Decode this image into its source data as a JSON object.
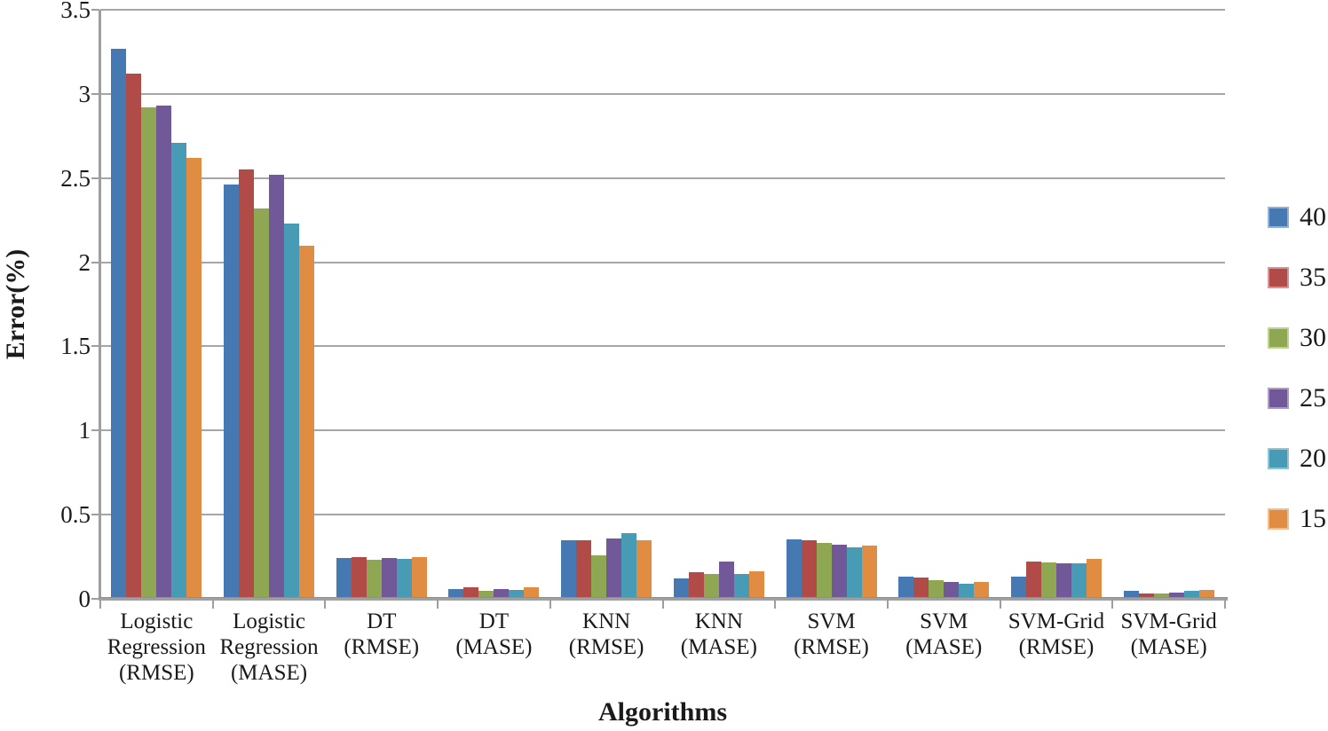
{
  "chart_data": {
    "type": "bar",
    "title": "",
    "xlabel": "Algorithms",
    "ylabel": "Error(%)",
    "ylim": [
      0,
      3.5
    ],
    "ytick_step": 0.5,
    "grid": true,
    "legend_position": "right",
    "categories": [
      "Logistic Regression (RMSE)",
      "Logistic Regression (MASE)",
      "DT (RMSE)",
      "DT (MASE)",
      "KNN (RMSE)",
      "KNN (MASE)",
      "SVM (RMSE)",
      "SVM (MASE)",
      "SVM-Grid (RMSE)",
      "SVM-Grid (MASE)"
    ],
    "category_label_lines": [
      [
        "Logistic",
        "Regression",
        "(RMSE)"
      ],
      [
        "Logistic",
        "Regression",
        "(MASE)"
      ],
      [
        "DT",
        "(RMSE)"
      ],
      [
        "DT",
        "(MASE)"
      ],
      [
        "KNN",
        "(RMSE)"
      ],
      [
        "KNN",
        "(MASE)"
      ],
      [
        "SVM",
        "(RMSE)"
      ],
      [
        "SVM",
        "(MASE)"
      ],
      [
        "SVM-Grid",
        "(RMSE)"
      ],
      [
        "SVM-Grid",
        "(MASE)"
      ]
    ],
    "series": [
      {
        "name": "40",
        "color": "#4679B2",
        "swatch_border": "#92B1D5",
        "values": [
          3.27,
          2.46,
          0.24,
          0.06,
          0.35,
          0.12,
          0.355,
          0.13,
          0.13,
          0.045
        ]
      },
      {
        "name": "35",
        "color": "#B04B48",
        "swatch_border": "#D49694",
        "values": [
          3.12,
          2.55,
          0.25,
          0.07,
          0.35,
          0.16,
          0.35,
          0.125,
          0.22,
          0.03
        ]
      },
      {
        "name": "30",
        "color": "#8FA653",
        "swatch_border": "#BFD38F",
        "values": [
          2.92,
          2.32,
          0.23,
          0.05,
          0.26,
          0.15,
          0.33,
          0.11,
          0.215,
          0.03
        ]
      },
      {
        "name": "25",
        "color": "#715898",
        "swatch_border": "#AE9CC6",
        "values": [
          2.93,
          2.52,
          0.24,
          0.06,
          0.36,
          0.22,
          0.32,
          0.1,
          0.21,
          0.035
        ]
      },
      {
        "name": "20",
        "color": "#479BB4",
        "swatch_border": "#92C3D5",
        "values": [
          2.71,
          2.23,
          0.235,
          0.055,
          0.39,
          0.145,
          0.305,
          0.09,
          0.21,
          0.05
        ]
      },
      {
        "name": "15",
        "color": "#E18C43",
        "swatch_border": "#F0BE92",
        "values": [
          2.62,
          2.1,
          0.25,
          0.07,
          0.35,
          0.165,
          0.315,
          0.1,
          0.235,
          0.055
        ]
      }
    ],
    "colors": {
      "grid": "#a6a6a6",
      "axis": "#9e9e9e",
      "text": "#1a1a1a",
      "background": "#ffffff"
    }
  }
}
